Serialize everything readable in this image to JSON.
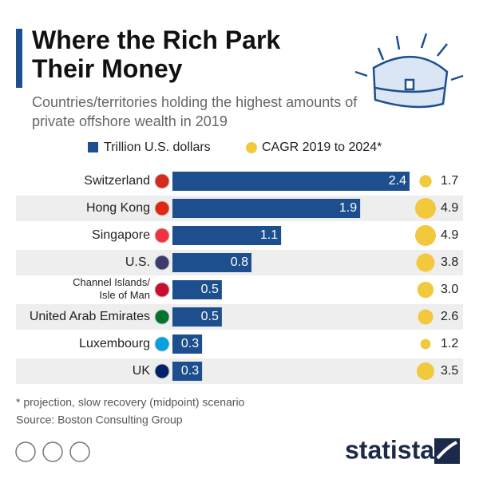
{
  "chart_data": {
    "type": "bar",
    "title": "Where the Rich Park Their Money",
    "subtitle": "Countries/territories holding the highest amounts of private offshore wealth in 2019",
    "categories": [
      "Switzerland",
      "Hong Kong",
      "Singapore",
      "U.S.",
      "Channel Islands/ Isle of Man",
      "United Arab Emirates",
      "Luxembourg",
      "UK"
    ],
    "series": [
      {
        "name": "Trillion U.S. dollars",
        "color": "#1d4f8f",
        "values": [
          2.4,
          1.9,
          1.1,
          0.8,
          0.5,
          0.5,
          0.3,
          0.3
        ]
      },
      {
        "name": "CAGR 2019 to 2024*",
        "color": "#f2c93c",
        "values": [
          1.7,
          4.9,
          4.9,
          3.8,
          3.0,
          2.6,
          1.2,
          3.5
        ],
        "value_labels": [
          "1.7",
          "4.9",
          "4.9",
          "3.8",
          "3.0",
          "2.6",
          "1.2",
          "3.5"
        ]
      }
    ],
    "footnote": "* projection, slow recovery (midpoint) scenario",
    "source": "Source: Boston Consulting Group",
    "brand": "statista"
  }
}
